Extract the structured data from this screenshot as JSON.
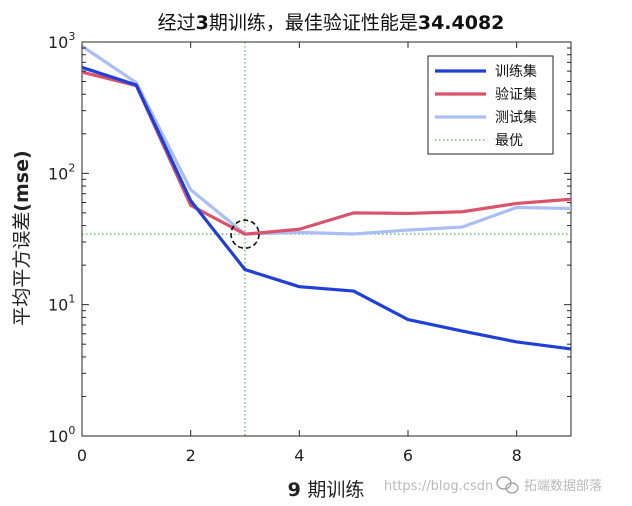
{
  "chart_data": {
    "type": "line",
    "title_parts": [
      {
        "text": "经过",
        "bold": false
      },
      {
        "text": "3",
        "bold": true
      },
      {
        "text": "期训练，最佳验证性能是",
        "bold": false
      },
      {
        "text": "34.4082",
        "bold": true
      }
    ],
    "xlabel_parts": [
      {
        "text": "9 ",
        "bold": true
      },
      {
        "text": "期训练",
        "bold": false
      }
    ],
    "ylabel_parts": [
      {
        "text": "平均平方误差",
        "bold": false
      },
      {
        "text": "(mse)",
        "bold": true
      }
    ],
    "x": [
      0,
      1,
      2,
      3,
      4,
      5,
      6,
      7,
      8,
      9
    ],
    "xlim": [
      0,
      9
    ],
    "ylim": [
      1,
      1000
    ],
    "yscale": "log",
    "xticks": [
      0,
      2,
      4,
      6,
      8
    ],
    "xtick_labels": [
      "0",
      "2",
      "4",
      "6",
      "8"
    ],
    "yticks": [
      1,
      10,
      100,
      1000
    ],
    "ytick_labels": [
      "10",
      "10",
      "10",
      "10"
    ],
    "ytick_exponents": [
      "0",
      "1",
      "2",
      "3"
    ],
    "series": [
      {
        "name": "训练集",
        "color": "#1f3fd6",
        "values": [
          640,
          470,
          62,
          18.5,
          13.7,
          12.7,
          7.7,
          6.3,
          5.2,
          4.6
        ]
      },
      {
        "name": "验证集",
        "color": "#d9546a",
        "values": [
          590,
          465,
          57,
          34.4,
          37.5,
          50,
          49.5,
          51,
          59,
          63.5
        ]
      },
      {
        "name": "测试集",
        "color": "#aabdf5",
        "values": [
          930,
          490,
          75,
          34.5,
          35.5,
          34.5,
          37,
          39,
          55,
          54
        ]
      }
    ],
    "best": {
      "name": "最优",
      "epoch": 3,
      "value": 34.4082,
      "color": "#2e9e2e"
    },
    "legend_position": "top-right",
    "grid": false
  },
  "watermark": {
    "url": "https://blog.csdn",
    "account": "拓端数据部落"
  }
}
